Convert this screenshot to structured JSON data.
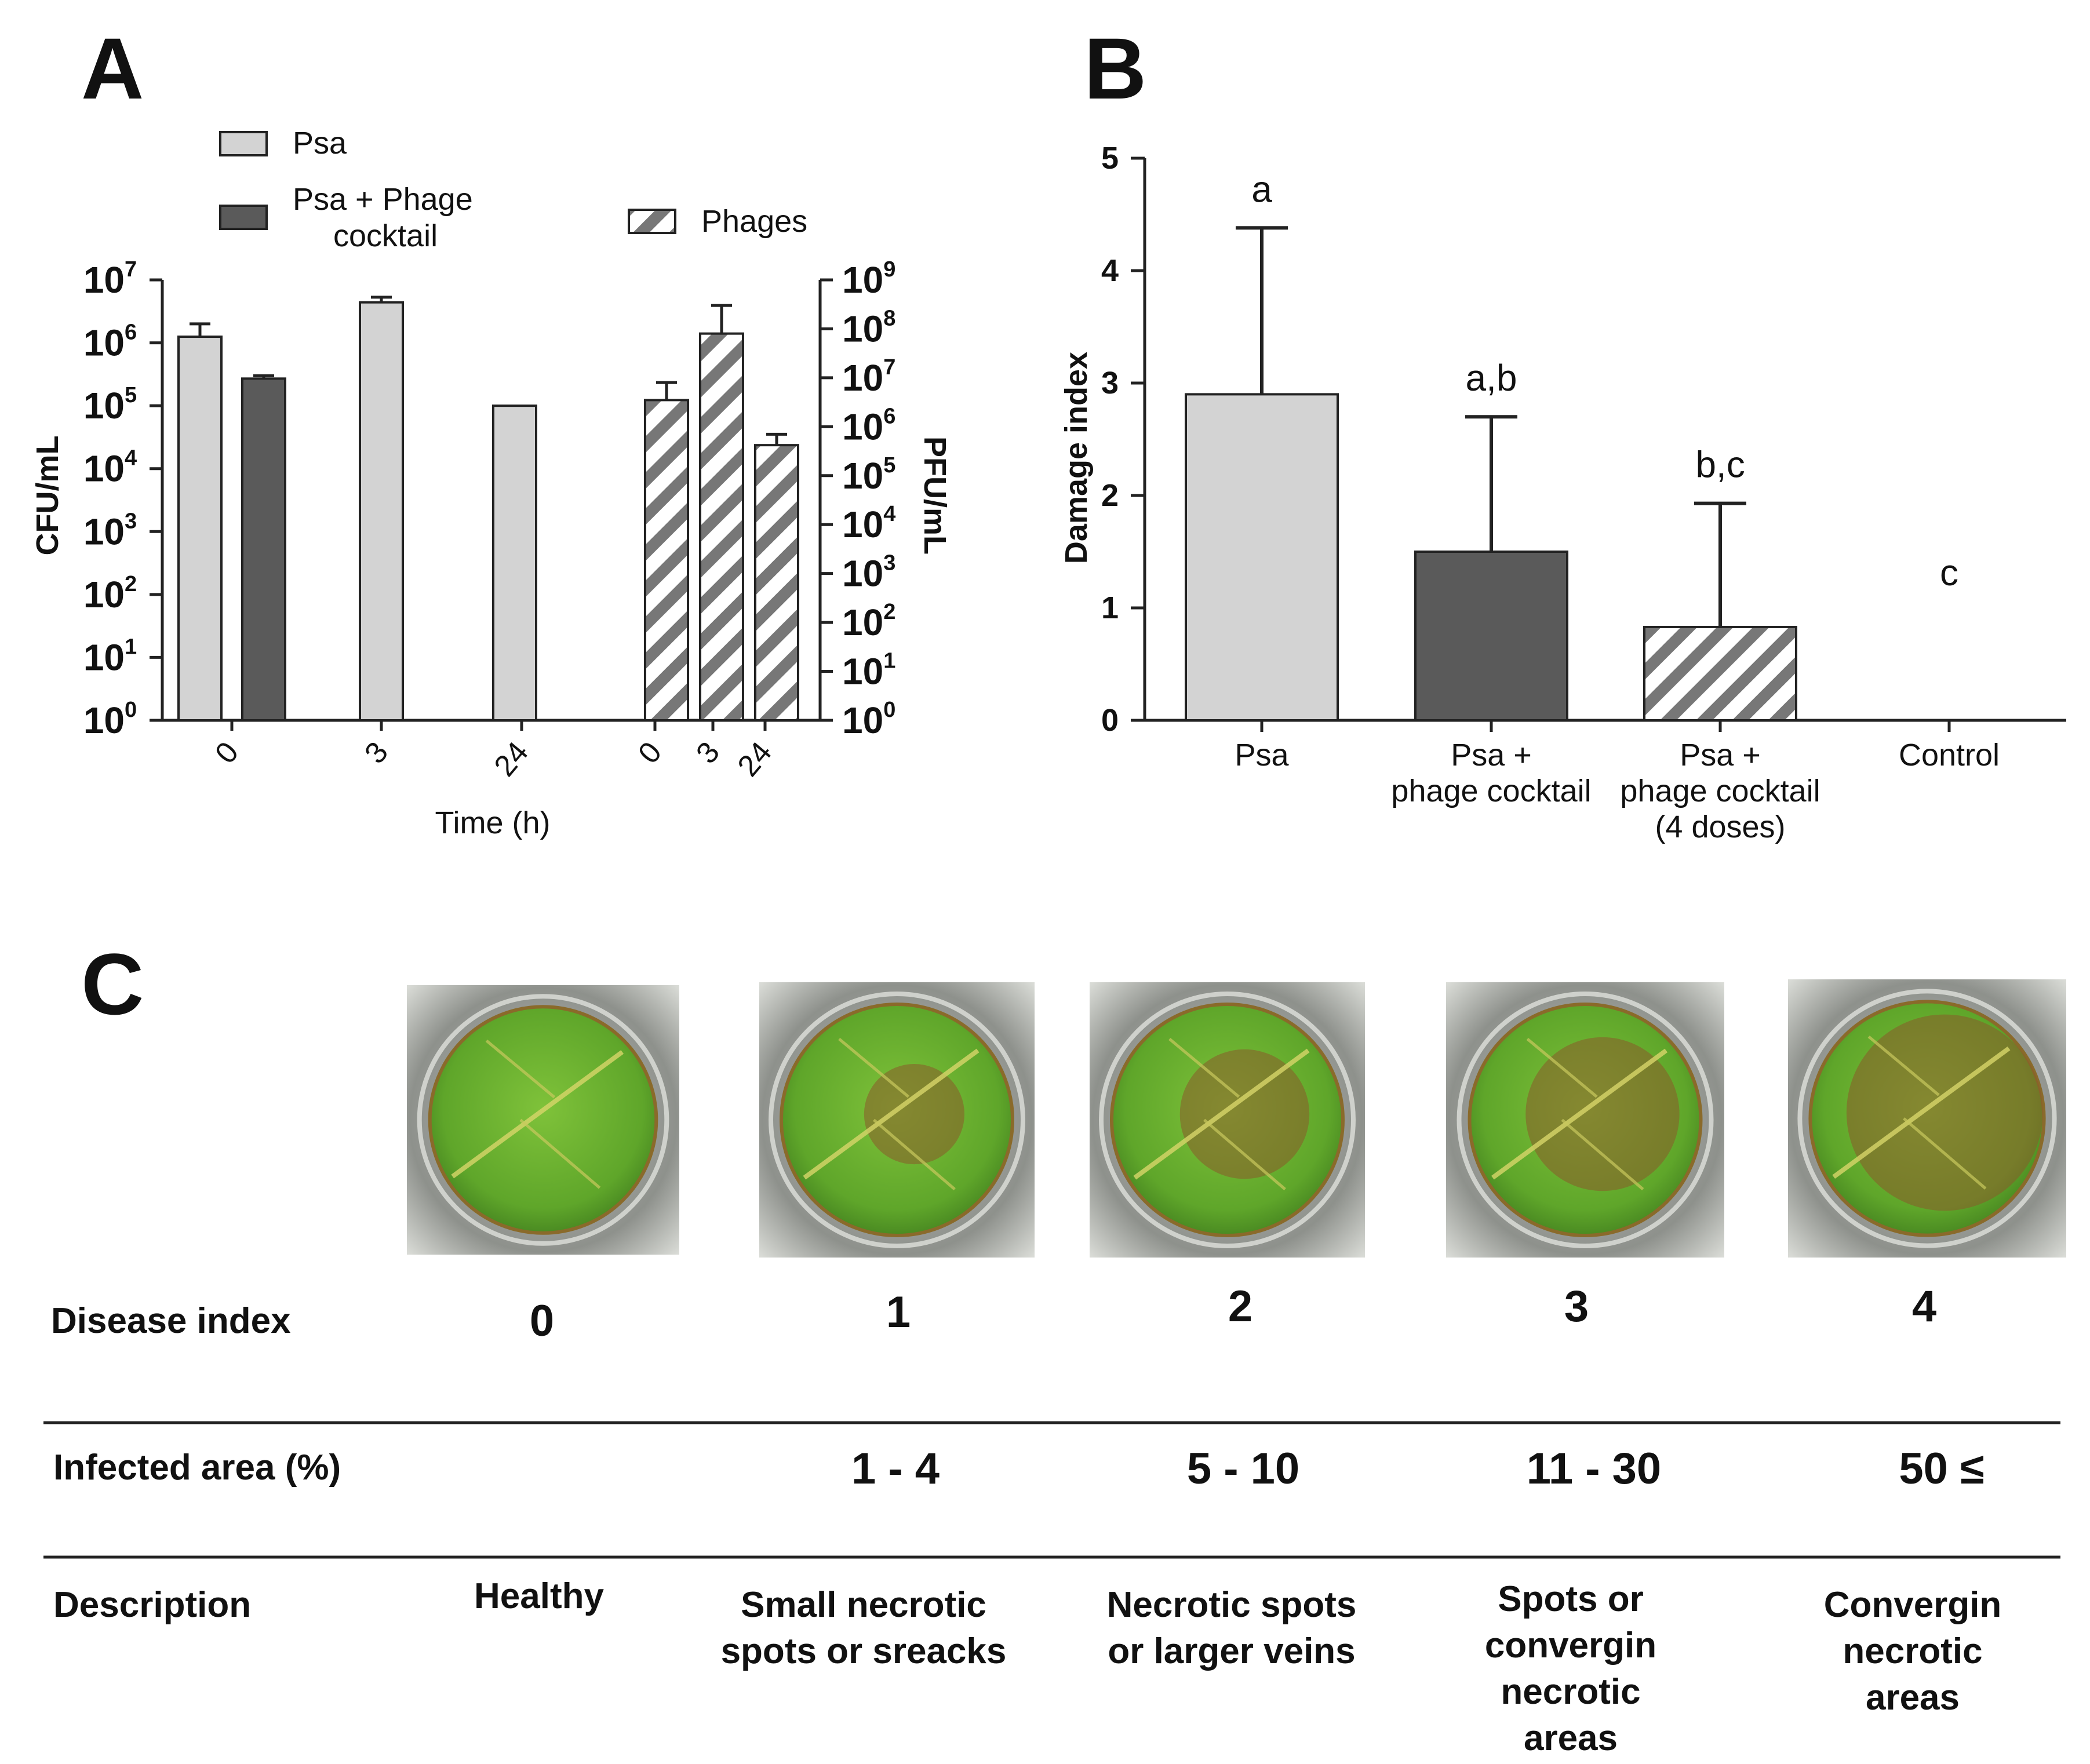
{
  "panels": {
    "a": "A",
    "b": "B",
    "c": "C"
  },
  "chart_data": [
    {
      "type": "bar",
      "panel": "A",
      "xlabel": "Time (h)",
      "ylabel_left": "CFU/mL",
      "ylabel_right": "PFU/mL",
      "y_scale": "log",
      "ylim_left": [
        1,
        10000000
      ],
      "ylim_right": [
        1,
        1000000000
      ],
      "left_ticks": [
        {
          "base": "10",
          "exp": "0"
        },
        {
          "base": "10",
          "exp": "1"
        },
        {
          "base": "10",
          "exp": "2"
        },
        {
          "base": "10",
          "exp": "3"
        },
        {
          "base": "10",
          "exp": "4"
        },
        {
          "base": "10",
          "exp": "5"
        },
        {
          "base": "10",
          "exp": "6"
        },
        {
          "base": "10",
          "exp": "7"
        }
      ],
      "right_ticks": [
        {
          "base": "10",
          "exp": "0"
        },
        {
          "base": "10",
          "exp": "1"
        },
        {
          "base": "10",
          "exp": "2"
        },
        {
          "base": "10",
          "exp": "3"
        },
        {
          "base": "10",
          "exp": "4"
        },
        {
          "base": "10",
          "exp": "5"
        },
        {
          "base": "10",
          "exp": "6"
        },
        {
          "base": "10",
          "exp": "7"
        },
        {
          "base": "10",
          "exp": "8"
        },
        {
          "base": "10",
          "exp": "9"
        }
      ],
      "legend": {
        "psa": "Psa",
        "psa_phage_line1": "Psa + Phage",
        "psa_phage_line2": "cocktail",
        "phages": "Phages"
      },
      "legend_placement": "top",
      "groups": [
        {
          "category": "0",
          "axis": "left",
          "psa": 1250000,
          "psa_err": 2000000,
          "psa_phage": 270000,
          "psa_phage_err": 300000
        },
        {
          "category": "3",
          "axis": "left",
          "psa": 4400000,
          "psa_err": 5300000
        },
        {
          "category": "24",
          "axis": "left",
          "psa": 100000
        },
        {
          "category": "0",
          "axis": "right",
          "phages": 3500000,
          "phages_err": 8000000
        },
        {
          "category": "3",
          "axis": "right",
          "phages": 80000000,
          "phages_err": 300000000
        },
        {
          "category": "24",
          "axis": "right",
          "phages": 420000,
          "phages_err": 700000
        }
      ]
    },
    {
      "type": "bar",
      "panel": "B",
      "ylabel": "Damage index",
      "ylim": [
        0,
        5
      ],
      "yticks": [
        "0",
        "1",
        "2",
        "3",
        "4",
        "5"
      ],
      "categories": [
        [
          "Psa"
        ],
        [
          "Psa +",
          "phage cocktail"
        ],
        [
          "Psa +",
          "phage cocktail",
          "(4 doses)"
        ],
        [
          "Control"
        ]
      ],
      "values": [
        2.9,
        1.5,
        0.83,
        0
      ],
      "err_upper": [
        4.38,
        2.7,
        1.93,
        null
      ],
      "significance": [
        "a",
        "a,b",
        "b,c",
        "c"
      ],
      "fills": [
        "light-gray",
        "dark-gray",
        "hatched",
        "none"
      ]
    }
  ],
  "table": {
    "row_labels": {
      "disease_index": "Disease index",
      "infected_area": "Infected area (%)",
      "description": "Description"
    },
    "columns": [
      {
        "index": "0",
        "area": "",
        "description": [
          "Healthy"
        ]
      },
      {
        "index": "1",
        "area": "1 - 4",
        "description": [
          "Small necrotic",
          "spots or sreacks"
        ]
      },
      {
        "index": "2",
        "area": "5 - 10",
        "description": [
          "Necrotic spots",
          "or larger veins"
        ]
      },
      {
        "index": "3",
        "area": "11 - 30",
        "description": [
          "Spots or",
          "convergin",
          "necrotic",
          "areas"
        ]
      },
      {
        "index": "4",
        "area": "50 ≤",
        "description": [
          "Convergin",
          "necrotic",
          "areas"
        ]
      }
    ],
    "photos": [
      "leaf-disc-photo-healthy",
      "leaf-disc-photo-index-1",
      "leaf-disc-photo-index-2",
      "leaf-disc-photo-index-3",
      "leaf-disc-photo-index-4"
    ]
  },
  "colors": {
    "psa": "#d3d3d3",
    "psa_phage": "#5a5a5a",
    "hatch": "#777777",
    "leaf": "#6bb22e",
    "leaf_dark": "#8a5a2a",
    "dish": "#9a9c98"
  }
}
